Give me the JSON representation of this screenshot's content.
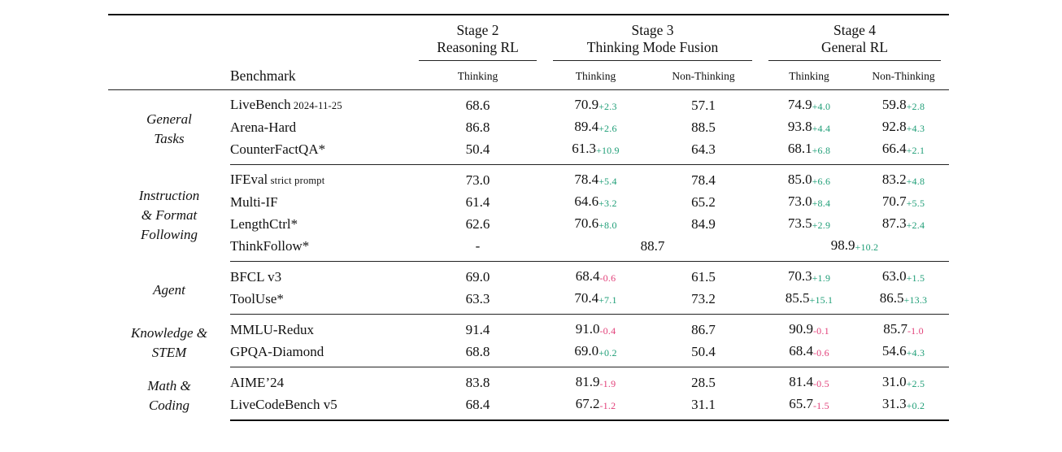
{
  "colors": {
    "positive": "#1f9e77",
    "negative": "#e2417a",
    "rule": "#111111"
  },
  "table": {
    "col_headers": {
      "benchmark_label": "Benchmark",
      "groups": [
        {
          "title_line1": "Stage 2",
          "title_line2": "Reasoning RL",
          "subs": [
            "Thinking"
          ]
        },
        {
          "title_line1": "Stage 3",
          "title_line2": "Thinking Mode Fusion",
          "subs": [
            "Thinking",
            "Non-Thinking"
          ]
        },
        {
          "title_line1": "Stage 4",
          "title_line2": "General RL",
          "subs": [
            "Thinking",
            "Non-Thinking"
          ]
        }
      ]
    },
    "sections": [
      {
        "category_lines": [
          "General",
          "Tasks"
        ],
        "rows": [
          {
            "benchmark": "LiveBench",
            "suffix": "2024-11-25",
            "cells": [
              {
                "v": "68.6"
              },
              {
                "v": "70.9",
                "d": "+2.3"
              },
              {
                "v": "57.1"
              },
              {
                "v": "74.9",
                "d": "+4.0"
              },
              {
                "v": "59.8",
                "d": "+2.8"
              }
            ]
          },
          {
            "benchmark": "Arena-Hard",
            "cells": [
              {
                "v": "86.8"
              },
              {
                "v": "89.4",
                "d": "+2.6"
              },
              {
                "v": "88.5"
              },
              {
                "v": "93.8",
                "d": "+4.4"
              },
              {
                "v": "92.8",
                "d": "+4.3"
              }
            ]
          },
          {
            "benchmark": "CounterFactQA*",
            "cells": [
              {
                "v": "50.4"
              },
              {
                "v": "61.3",
                "d": "+10.9"
              },
              {
                "v": "64.3"
              },
              {
                "v": "68.1",
                "d": "+6.8"
              },
              {
                "v": "66.4",
                "d": "+2.1"
              }
            ]
          }
        ]
      },
      {
        "category_lines": [
          "Instruction",
          "& Format",
          "Following"
        ],
        "rows": [
          {
            "benchmark": "IFEval",
            "suffix": "strict prompt",
            "cells": [
              {
                "v": "73.0"
              },
              {
                "v": "78.4",
                "d": "+5.4"
              },
              {
                "v": "78.4"
              },
              {
                "v": "85.0",
                "d": "+6.6"
              },
              {
                "v": "83.2",
                "d": "+4.8"
              }
            ]
          },
          {
            "benchmark": "Multi-IF",
            "cells": [
              {
                "v": "61.4"
              },
              {
                "v": "64.6",
                "d": "+3.2"
              },
              {
                "v": "65.2"
              },
              {
                "v": "73.0",
                "d": "+8.4"
              },
              {
                "v": "70.7",
                "d": "+5.5"
              }
            ]
          },
          {
            "benchmark": "LengthCtrl*",
            "cells": [
              {
                "v": "62.6"
              },
              {
                "v": "70.6",
                "d": "+8.0"
              },
              {
                "v": "84.9"
              },
              {
                "v": "73.5",
                "d": "+2.9"
              },
              {
                "v": "87.3",
                "d": "+2.4"
              }
            ]
          },
          {
            "benchmark": "ThinkFollow*",
            "cells": [
              {
                "v": "-"
              },
              {
                "v": "88.7",
                "span": 2
              },
              {
                "v": "98.9",
                "d": "+10.2",
                "span": 2
              }
            ]
          }
        ]
      },
      {
        "category_lines": [
          "Agent"
        ],
        "rows": [
          {
            "benchmark": "BFCL v3",
            "cells": [
              {
                "v": "69.0"
              },
              {
                "v": "68.4",
                "d": "-0.6"
              },
              {
                "v": "61.5"
              },
              {
                "v": "70.3",
                "d": "+1.9"
              },
              {
                "v": "63.0",
                "d": "+1.5"
              }
            ]
          },
          {
            "benchmark": "ToolUse*",
            "cells": [
              {
                "v": "63.3"
              },
              {
                "v": "70.4",
                "d": "+7.1"
              },
              {
                "v": "73.2"
              },
              {
                "v": "85.5",
                "d": "+15.1"
              },
              {
                "v": "86.5",
                "d": "+13.3"
              }
            ]
          }
        ]
      },
      {
        "category_lines": [
          "Knowledge &",
          "STEM"
        ],
        "rows": [
          {
            "benchmark": "MMLU-Redux",
            "cells": [
              {
                "v": "91.4"
              },
              {
                "v": "91.0",
                "d": "-0.4"
              },
              {
                "v": "86.7"
              },
              {
                "v": "90.9",
                "d": "-0.1"
              },
              {
                "v": "85.7",
                "d": "-1.0"
              }
            ]
          },
          {
            "benchmark": "GPQA-Diamond",
            "cells": [
              {
                "v": "68.8"
              },
              {
                "v": "69.0",
                "d": "+0.2"
              },
              {
                "v": "50.4"
              },
              {
                "v": "68.4",
                "d": "-0.6"
              },
              {
                "v": "54.6",
                "d": "+4.3"
              }
            ]
          }
        ]
      },
      {
        "category_lines": [
          "Math &",
          "Coding"
        ],
        "rows": [
          {
            "benchmark": "AIME’24",
            "cells": [
              {
                "v": "83.8"
              },
              {
                "v": "81.9",
                "d": "-1.9"
              },
              {
                "v": "28.5"
              },
              {
                "v": "81.4",
                "d": "-0.5"
              },
              {
                "v": "31.0",
                "d": "+2.5"
              }
            ]
          },
          {
            "benchmark": "LiveCodeBench v5",
            "cells": [
              {
                "v": "68.4"
              },
              {
                "v": "67.2",
                "d": "-1.2"
              },
              {
                "v": "31.1"
              },
              {
                "v": "65.7",
                "d": "-1.5"
              },
              {
                "v": "31.3",
                "d": "+0.2"
              }
            ]
          }
        ]
      }
    ]
  }
}
